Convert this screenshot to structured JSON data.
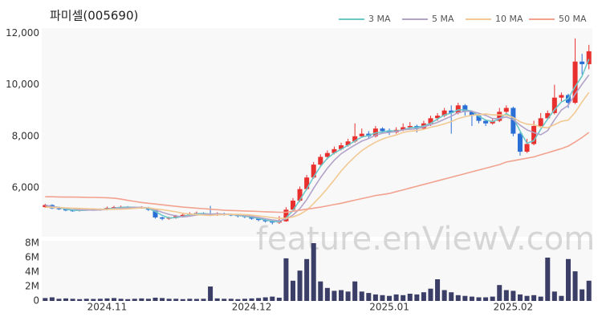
{
  "chart_data": {
    "type": "candlestick",
    "title": "파미셀(005690)",
    "watermark": "feature.enViewV.com",
    "categories": [
      null,
      null,
      null,
      null,
      null,
      null,
      null,
      null,
      null,
      "2024.11",
      null,
      null,
      null,
      null,
      null,
      null,
      null,
      null,
      null,
      null,
      null,
      null,
      null,
      null,
      null,
      null,
      null,
      null,
      null,
      null,
      "2024.12",
      null,
      null,
      null,
      null,
      null,
      null,
      null,
      null,
      null,
      null,
      null,
      null,
      null,
      null,
      null,
      null,
      null,
      null,
      null,
      "2025.01",
      null,
      null,
      null,
      null,
      null,
      null,
      null,
      null,
      null,
      null,
      null,
      null,
      null,
      null,
      null,
      null,
      null,
      "2025.02",
      null,
      null,
      null,
      null,
      null,
      null,
      null,
      null,
      null,
      null,
      null
    ],
    "open": [
      5250,
      5330,
      5200,
      5180,
      5120,
      5100,
      5130,
      5150,
      5170,
      5150,
      5220,
      5250,
      5260,
      5240,
      5220,
      5230,
      5150,
      4850,
      4800,
      4830,
      4900,
      4950,
      5000,
      5020,
      4980,
      4950,
      5000,
      4960,
      4940,
      4900,
      4870,
      4800,
      4750,
      4700,
      4650,
      4700,
      5150,
      5500,
      5950,
      6400,
      6900,
      7200,
      7350,
      7500,
      7650,
      7800,
      8000,
      8100,
      8000,
      8300,
      8200,
      8150,
      8250,
      8350,
      8400,
      8300,
      8500,
      8700,
      8800,
      9000,
      8900,
      9200,
      8950,
      8800,
      8600,
      8500,
      8600,
      8950,
      9100,
      8100,
      7400,
      7700,
      8400,
      8700,
      8900,
      9500,
      9600,
      9300,
      10900,
      10800
    ],
    "high": [
      5380,
      5360,
      5240,
      5210,
      5160,
      5170,
      5190,
      5210,
      5200,
      5270,
      5300,
      5310,
      5290,
      5270,
      5280,
      5260,
      5170,
      4880,
      4880,
      4950,
      5000,
      5050,
      5080,
      5050,
      5300,
      5050,
      5030,
      4990,
      4980,
      4930,
      4900,
      4830,
      4790,
      4740,
      4900,
      5250,
      5600,
      6050,
      6500,
      7000,
      7300,
      7450,
      7600,
      7750,
      7900,
      8500,
      8300,
      8200,
      8400,
      8350,
      8300,
      8350,
      8500,
      8550,
      8450,
      8600,
      8800,
      8900,
      9100,
      9200,
      9300,
      9250,
      9000,
      8850,
      8650,
      8700,
      9100,
      9200,
      9150,
      8150,
      7900,
      8600,
      8900,
      9000,
      10000,
      9700,
      9650,
      11800,
      11200,
      11550
    ],
    "low": [
      5220,
      5170,
      5140,
      5090,
      5070,
      5080,
      5110,
      5120,
      5110,
      5130,
      5190,
      5210,
      5200,
      5180,
      5190,
      5100,
      4800,
      4740,
      4760,
      4800,
      4870,
      4920,
      4960,
      4940,
      4900,
      4910,
      4920,
      4900,
      4850,
      4820,
      4760,
      4700,
      4650,
      4580,
      4600,
      4680,
      5100,
      5450,
      5900,
      6350,
      6850,
      7100,
      7300,
      7450,
      7600,
      7750,
      7950,
      7900,
      7950,
      8100,
      8050,
      8100,
      8200,
      8250,
      8150,
      8250,
      8400,
      8600,
      8750,
      8100,
      8850,
      8800,
      8400,
      8500,
      8400,
      8450,
      8550,
      8900,
      8000,
      7250,
      7350,
      7650,
      8350,
      8650,
      8850,
      9350,
      9100,
      9250,
      10400,
      10600
    ],
    "close": [
      5330,
      5200,
      5180,
      5120,
      5100,
      5130,
      5150,
      5170,
      5150,
      5220,
      5250,
      5260,
      5240,
      5220,
      5230,
      5150,
      4850,
      4800,
      4830,
      4900,
      4950,
      5000,
      5020,
      4980,
      4950,
      5000,
      4960,
      4940,
      4900,
      4870,
      4800,
      4750,
      4700,
      4650,
      4700,
      5150,
      5500,
      5950,
      6400,
      6900,
      7200,
      7350,
      7500,
      7650,
      7800,
      8000,
      8100,
      8000,
      8300,
      8200,
      8150,
      8250,
      8350,
      8400,
      8300,
      8500,
      8700,
      8800,
      9000,
      8900,
      9200,
      8950,
      8800,
      8600,
      8500,
      8600,
      8950,
      9100,
      8100,
      7400,
      7700,
      8400,
      8700,
      8900,
      9500,
      9600,
      9300,
      10900,
      10800,
      11300
    ],
    "color_up": "#e8302e",
    "color_down": "#2a6fd6",
    "ylim": [
      4100,
      12200
    ],
    "yticks": [
      {
        "value": 6000,
        "label": "6,000"
      },
      {
        "value": 8000,
        "label": "8,000"
      },
      {
        "value": 10000,
        "label": "10,000"
      },
      {
        "value": 12000,
        "label": "12,000"
      }
    ],
    "legend": "top-right",
    "series": [
      {
        "name": "3 MA",
        "color": "#6cc7c9",
        "values": [
          5330,
          5265,
          5240,
          5170,
          5130,
          5120,
          5130,
          5150,
          5160,
          5180,
          5210,
          5240,
          5250,
          5240,
          5230,
          5200,
          5080,
          4930,
          4830,
          4840,
          4890,
          4950,
          4990,
          5000,
          4980,
          4980,
          4970,
          4970,
          4930,
          4900,
          4860,
          4810,
          4750,
          4700,
          4680,
          4830,
          5120,
          5530,
          5950,
          6420,
          6830,
          7150,
          7350,
          7500,
          7650,
          7820,
          7970,
          8030,
          8130,
          8170,
          8220,
          8200,
          8250,
          8330,
          8350,
          8400,
          8500,
          8670,
          8830,
          8900,
          9030,
          9020,
          8980,
          8780,
          8630,
          8570,
          8680,
          8880,
          8720,
          8200,
          7730,
          7830,
          8270,
          8670,
          9030,
          9330,
          9470,
          9930,
          10330,
          11000
        ]
      },
      {
        "name": "5 MA",
        "color": "#b3a3c9",
        "values": [
          5330,
          5265,
          5240,
          5210,
          5190,
          5150,
          5140,
          5130,
          5140,
          5160,
          5190,
          5210,
          5220,
          5240,
          5240,
          5220,
          5140,
          5050,
          4970,
          4910,
          4870,
          4900,
          4940,
          4970,
          4980,
          4990,
          4980,
          4970,
          4950,
          4930,
          4890,
          4850,
          4800,
          4750,
          4720,
          4790,
          4940,
          5190,
          5540,
          5980,
          6390,
          6760,
          7070,
          7320,
          7500,
          7660,
          7810,
          7910,
          8040,
          8120,
          8150,
          8180,
          8250,
          8270,
          8290,
          8360,
          8450,
          8540,
          8660,
          8780,
          8920,
          8970,
          8970,
          8890,
          8810,
          8690,
          8690,
          8750,
          8650,
          8430,
          8250,
          8140,
          8060,
          8220,
          8640,
          9020,
          9200,
          9640,
          10020,
          10380
        ]
      },
      {
        "name": "10 MA",
        "color": "#f2c992",
        "values": [
          5250,
          5240,
          5230,
          5220,
          5210,
          5200,
          5190,
          5180,
          5170,
          5160,
          5170,
          5170,
          5180,
          5200,
          5220,
          5220,
          5180,
          5150,
          5110,
          5070,
          5010,
          4980,
          4960,
          4940,
          4930,
          4950,
          4960,
          4970,
          4970,
          4960,
          4940,
          4910,
          4880,
          4840,
          4810,
          4820,
          4870,
          4970,
          5130,
          5390,
          5670,
          5980,
          6310,
          6650,
          6950,
          7210,
          7440,
          7620,
          7770,
          7890,
          7980,
          8050,
          8150,
          8200,
          8220,
          8270,
          8350,
          8410,
          8480,
          8570,
          8690,
          8760,
          8820,
          8840,
          8870,
          8830,
          8830,
          8820,
          8730,
          8560,
          8470,
          8450,
          8360,
          8330,
          8450,
          8580,
          8630,
          8930,
          9330,
          9700
        ]
      },
      {
        "name": "50 MA",
        "color": "#f2a28e",
        "values": [
          5650,
          5650,
          5645,
          5640,
          5640,
          5635,
          5630,
          5625,
          5620,
          5615,
          5600,
          5560,
          5510,
          5470,
          5430,
          5400,
          5370,
          5340,
          5310,
          5280,
          5250,
          5230,
          5210,
          5190,
          5170,
          5150,
          5130,
          5120,
          5110,
          5100,
          5090,
          5080,
          5070,
          5060,
          5050,
          5050,
          5090,
          5130,
          5170,
          5210,
          5250,
          5300,
          5350,
          5400,
          5460,
          5520,
          5580,
          5640,
          5700,
          5740,
          5780,
          5850,
          5920,
          5990,
          6060,
          6130,
          6200,
          6270,
          6340,
          6410,
          6480,
          6550,
          6620,
          6690,
          6760,
          6830,
          6900,
          7000,
          7050,
          7100,
          7150,
          7200,
          7280,
          7360,
          7440,
          7520,
          7620,
          7780,
          7950,
          8150
        ]
      }
    ],
    "volume": {
      "color": "#3b3e66",
      "ylim": [
        0,
        8000000
      ],
      "yticks": [
        0,
        {
          "value": 2000000,
          "label": "2M"
        },
        {
          "value": 4000000,
          "label": "4M"
        },
        {
          "value": 6000000,
          "label": "6M"
        },
        {
          "value": 8000000,
          "label": "8M"
        }
      ],
      "values": [
        400000,
        500000,
        300000,
        350000,
        300000,
        250000,
        300000,
        280000,
        300000,
        350000,
        400000,
        300000,
        250000,
        300000,
        350000,
        300000,
        450000,
        400000,
        300000,
        300000,
        250000,
        300000,
        280000,
        300000,
        2000000,
        350000,
        300000,
        300000,
        250000,
        300000,
        350000,
        400000,
        500000,
        600000,
        450000,
        5900000,
        2800000,
        4200000,
        5800000,
        8000000,
        2700000,
        1800000,
        1400000,
        1500000,
        1300000,
        2700000,
        1300000,
        1100000,
        900000,
        800000,
        700000,
        900000,
        800000,
        1000000,
        900000,
        1200000,
        1700000,
        3000000,
        1500000,
        1200000,
        800000,
        700000,
        600000,
        500000,
        500000,
        600000,
        2200000,
        1500000,
        1400000,
        900000,
        700000,
        800000,
        600000,
        6000000,
        1300000,
        700000,
        5800000,
        4100000,
        1600000,
        2800000
      ]
    }
  }
}
